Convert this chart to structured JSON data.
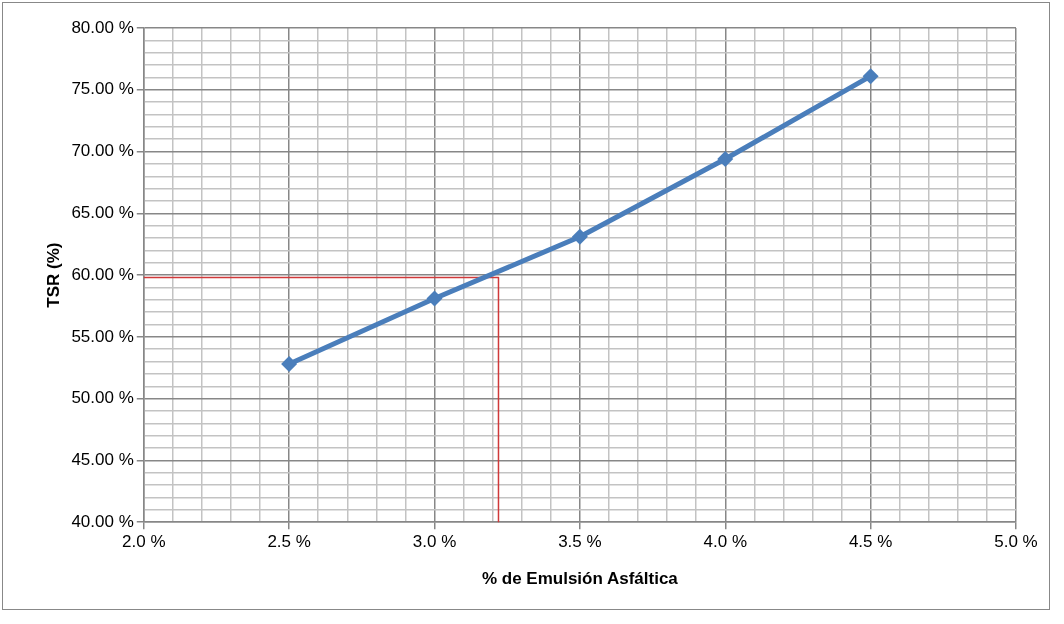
{
  "chart_data": {
    "type": "line",
    "xlabel": "% de Emulsión Asfáltica",
    "ylabel": "TSR (%)",
    "series": [
      {
        "color": "#4a7ebb",
        "marker": "diamond",
        "x": [
          2.5,
          3.0,
          3.5,
          4.0,
          4.5
        ],
        "values": [
          52.8,
          58.1,
          63.1,
          69.4,
          76.1
        ]
      },
      {
        "color": "#d0393a",
        "marker": "none",
        "x": [
          2.0,
          3.22,
          3.22
        ],
        "values": [
          59.8,
          59.8,
          40
        ]
      }
    ],
    "xlim": [
      2.0,
      5.0
    ],
    "ylim": [
      40,
      80
    ],
    "xticks": [
      {
        "value": 2.0,
        "label": "2.0 %"
      },
      {
        "value": 2.1,
        "label": null
      },
      {
        "value": 2.2,
        "label": null
      },
      {
        "value": 2.3,
        "label": null
      },
      {
        "value": 2.4,
        "label": null
      },
      {
        "value": 2.5,
        "label": "2.5 %"
      },
      {
        "value": 2.6,
        "label": null
      },
      {
        "value": 2.7,
        "label": null
      },
      {
        "value": 2.8,
        "label": null
      },
      {
        "value": 2.9,
        "label": null
      },
      {
        "value": 3.0,
        "label": "3.0 %"
      },
      {
        "value": 3.1,
        "label": null
      },
      {
        "value": 3.2,
        "label": null
      },
      {
        "value": 3.3,
        "label": null
      },
      {
        "value": 3.4,
        "label": null
      },
      {
        "value": 3.5,
        "label": "3.5 %"
      },
      {
        "value": 3.6,
        "label": null
      },
      {
        "value": 3.7,
        "label": null
      },
      {
        "value": 3.8,
        "label": null
      },
      {
        "value": 3.9,
        "label": null
      },
      {
        "value": 4.0,
        "label": "4.0 %"
      },
      {
        "value": 4.1,
        "label": null
      },
      {
        "value": 4.2,
        "label": null
      },
      {
        "value": 4.3,
        "label": null
      },
      {
        "value": 4.4,
        "label": null
      },
      {
        "value": 4.5,
        "label": "4.5 %"
      },
      {
        "value": 4.6,
        "label": null
      },
      {
        "value": 4.7,
        "label": null
      },
      {
        "value": 4.8,
        "label": null
      },
      {
        "value": 4.9,
        "label": null
      },
      {
        "value": 5.0,
        "label": "5.0 %"
      }
    ],
    "yticks": [
      {
        "value": 40,
        "label": "40.00 %"
      },
      {
        "value": 41,
        "label": null
      },
      {
        "value": 42,
        "label": null
      },
      {
        "value": 43,
        "label": null
      },
      {
        "value": 44,
        "label": null
      },
      {
        "value": 45,
        "label": "45.00 %"
      },
      {
        "value": 46,
        "label": null
      },
      {
        "value": 47,
        "label": null
      },
      {
        "value": 48,
        "label": null
      },
      {
        "value": 49,
        "label": null
      },
      {
        "value": 50,
        "label": "50.00 %"
      },
      {
        "value": 51,
        "label": null
      },
      {
        "value": 52,
        "label": null
      },
      {
        "value": 53,
        "label": null
      },
      {
        "value": 54,
        "label": null
      },
      {
        "value": 55,
        "label": "55.00 %"
      },
      {
        "value": 56,
        "label": null
      },
      {
        "value": 57,
        "label": null
      },
      {
        "value": 58,
        "label": null
      },
      {
        "value": 59,
        "label": null
      },
      {
        "value": 60,
        "label": "60.00 %"
      },
      {
        "value": 61,
        "label": null
      },
      {
        "value": 62,
        "label": null
      },
      {
        "value": 63,
        "label": null
      },
      {
        "value": 64,
        "label": null
      },
      {
        "value": 65,
        "label": "65.00 %"
      },
      {
        "value": 66,
        "label": null
      },
      {
        "value": 67,
        "label": null
      },
      {
        "value": 68,
        "label": null
      },
      {
        "value": 69,
        "label": null
      },
      {
        "value": 70,
        "label": "70.00 %"
      },
      {
        "value": 71,
        "label": null
      },
      {
        "value": 72,
        "label": null
      },
      {
        "value": 73,
        "label": null
      },
      {
        "value": 74,
        "label": null
      },
      {
        "value": 75,
        "label": "75.00 %"
      },
      {
        "value": 76,
        "label": null
      },
      {
        "value": 77,
        "label": null
      },
      {
        "value": 78,
        "label": null
      },
      {
        "value": 79,
        "label": null
      },
      {
        "value": 80,
        "label": "80.00 %"
      }
    ],
    "grid": true,
    "legend": false
  }
}
